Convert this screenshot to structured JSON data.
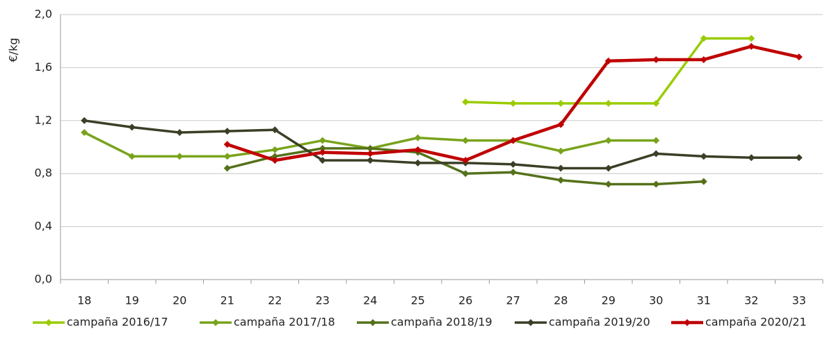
{
  "chart_data": {
    "type": "line",
    "y_label": "€/kg",
    "categories": [
      "18",
      "19",
      "20",
      "21",
      "22",
      "23",
      "24",
      "25",
      "26",
      "27",
      "28",
      "29",
      "30",
      "31",
      "32",
      "33"
    ],
    "series": [
      {
        "name": "campaña 2016/17",
        "color": "#99cc00",
        "values": [
          null,
          null,
          null,
          null,
          null,
          null,
          null,
          null,
          1.34,
          1.33,
          1.33,
          1.33,
          1.33,
          1.82,
          1.82,
          null
        ]
      },
      {
        "name": "campaña 2017/18",
        "color": "#78a31b",
        "values": [
          1.11,
          0.93,
          0.93,
          0.93,
          0.98,
          1.05,
          0.99,
          1.07,
          1.05,
          1.05,
          0.97,
          1.05,
          1.05,
          null,
          null,
          null
        ]
      },
      {
        "name": "campaña 2018/19",
        "color": "#55711a",
        "values": [
          null,
          null,
          null,
          0.84,
          0.93,
          0.99,
          0.99,
          0.96,
          0.8,
          0.81,
          0.75,
          0.72,
          0.72,
          0.74,
          null,
          null
        ]
      },
      {
        "name": "campaña 2019/20",
        "color": "#3a3f26",
        "values": [
          1.2,
          1.15,
          1.11,
          1.12,
          1.13,
          0.9,
          0.9,
          0.88,
          0.88,
          0.87,
          0.84,
          0.84,
          0.95,
          0.93,
          0.92,
          0.92
        ]
      },
      {
        "name": "campaña 2020/21",
        "color": "#c00000",
        "values": [
          null,
          null,
          null,
          1.02,
          0.9,
          0.96,
          0.95,
          0.98,
          0.9,
          1.05,
          1.17,
          1.65,
          1.66,
          1.66,
          1.76,
          1.68
        ]
      }
    ],
    "ylim": [
      0,
      2
    ],
    "yticks": [
      {
        "value": 0,
        "label": "0,0"
      },
      {
        "value": 0.4,
        "label": "0,4"
      },
      {
        "value": 0.8,
        "label": "0,8"
      },
      {
        "value": 1.2,
        "label": "1,2"
      },
      {
        "value": 1.6,
        "label": "1,6"
      },
      {
        "value": 2,
        "label": "2,0"
      }
    ],
    "grid": true,
    "legend": "bottom"
  }
}
